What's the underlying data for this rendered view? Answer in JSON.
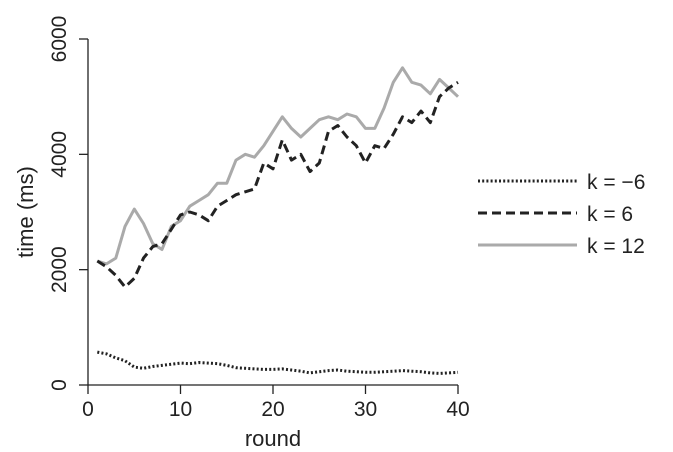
{
  "chart_data": {
    "type": "line",
    "title": "",
    "xlabel": "round",
    "ylabel": "time (ms)",
    "xlim": [
      0,
      40
    ],
    "ylim": [
      0,
      6000
    ],
    "xticks": [
      0,
      10,
      20,
      30,
      40
    ],
    "yticks": [
      0,
      2000,
      4000,
      6000
    ],
    "grid": false,
    "legend_position": "right",
    "series": [
      {
        "name": "k = −6",
        "style": "dotted",
        "color": "#222222",
        "x": [
          1,
          2,
          3,
          4,
          5,
          6,
          7,
          8,
          9,
          10,
          11,
          12,
          13,
          14,
          15,
          16,
          17,
          18,
          19,
          20,
          21,
          22,
          23,
          24,
          25,
          26,
          27,
          28,
          29,
          30,
          31,
          32,
          33,
          34,
          35,
          36,
          37,
          38,
          39,
          40
        ],
        "y": [
          570,
          540,
          470,
          420,
          310,
          290,
          320,
          340,
          360,
          380,
          370,
          390,
          380,
          370,
          340,
          300,
          290,
          280,
          270,
          270,
          280,
          260,
          240,
          210,
          230,
          250,
          260,
          240,
          230,
          220,
          220,
          230,
          240,
          250,
          240,
          230,
          210,
          200,
          210,
          220
        ]
      },
      {
        "name": "k = 6",
        "style": "dashed",
        "color": "#222222",
        "x": [
          1,
          2,
          3,
          4,
          5,
          6,
          7,
          8,
          9,
          10,
          11,
          12,
          13,
          14,
          15,
          16,
          17,
          18,
          19,
          20,
          21,
          22,
          23,
          24,
          25,
          26,
          27,
          28,
          29,
          30,
          31,
          32,
          33,
          34,
          35,
          36,
          37,
          38,
          39,
          40
        ],
        "y": [
          2150,
          2050,
          1900,
          1700,
          1850,
          2200,
          2400,
          2450,
          2700,
          2950,
          3000,
          2950,
          2850,
          3100,
          3200,
          3300,
          3350,
          3400,
          3850,
          3750,
          4250,
          3900,
          4000,
          3700,
          3850,
          4400,
          4500,
          4300,
          4150,
          3850,
          4150,
          4100,
          4350,
          4650,
          4550,
          4750,
          4550,
          5000,
          5150,
          5250
        ]
      },
      {
        "name": "k = 12",
        "style": "solid",
        "color": "#aaaaaa",
        "x": [
          1,
          2,
          3,
          4,
          5,
          6,
          7,
          8,
          9,
          10,
          11,
          12,
          13,
          14,
          15,
          16,
          17,
          18,
          19,
          20,
          21,
          22,
          23,
          24,
          25,
          26,
          27,
          28,
          29,
          30,
          31,
          32,
          33,
          34,
          35,
          36,
          37,
          38,
          39,
          40
        ],
        "y": [
          2150,
          2100,
          2200,
          2750,
          3050,
          2800,
          2450,
          2350,
          2750,
          2850,
          3100,
          3200,
          3300,
          3500,
          3500,
          3900,
          4000,
          3950,
          4150,
          4400,
          4650,
          4450,
          4300,
          4450,
          4600,
          4650,
          4600,
          4700,
          4650,
          4450,
          4450,
          4800,
          5250,
          5500,
          5250,
          5200,
          5050,
          5300,
          5150,
          5000
        ]
      }
    ]
  }
}
